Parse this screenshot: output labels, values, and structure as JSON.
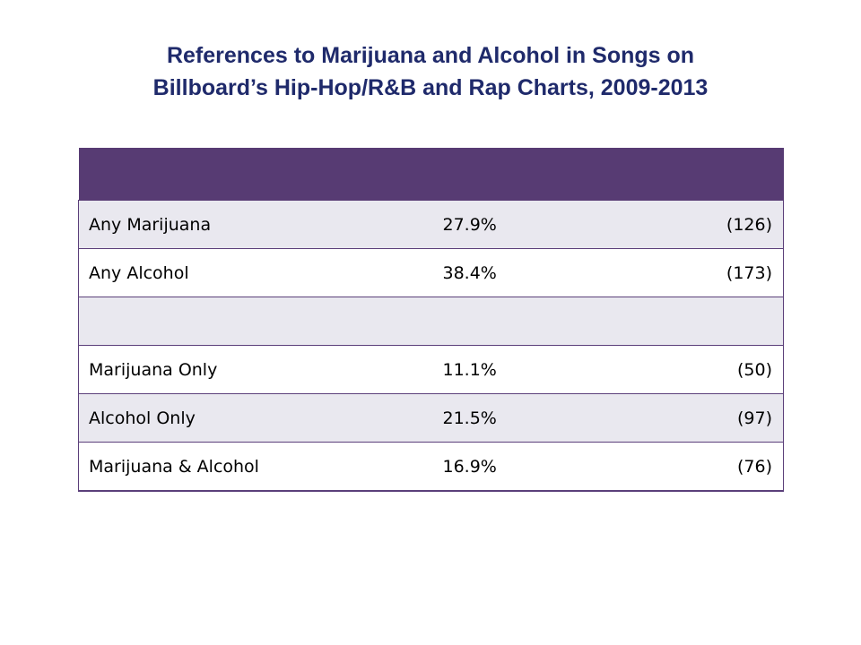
{
  "title": {
    "line1": "References to Marijuana and Alcohol in Songs on",
    "line2": "Billboard’s Hip-Hop/R&B and Rap Charts, 2009-2013"
  },
  "table": {
    "rows": [
      {
        "label": "Any Marijuana",
        "percent": "27.9%",
        "count": "(126)"
      },
      {
        "label": "Any Alcohol",
        "percent": "38.4%",
        "count": "(173)"
      },
      {
        "label": "",
        "percent": "",
        "count": ""
      },
      {
        "label": "Marijuana Only",
        "percent": "11.1%",
        "count": "(50)"
      },
      {
        "label": "Alcohol Only",
        "percent": "21.5%",
        "count": "(97)"
      },
      {
        "label": "Marijuana & Alcohol",
        "percent": "16.9%",
        "count": "(76)"
      }
    ]
  },
  "colors": {
    "title": "#1f2a6b",
    "header_fill": "#573b73",
    "shaded_row": "#e9e8ef",
    "border": "#5b3f7a"
  }
}
